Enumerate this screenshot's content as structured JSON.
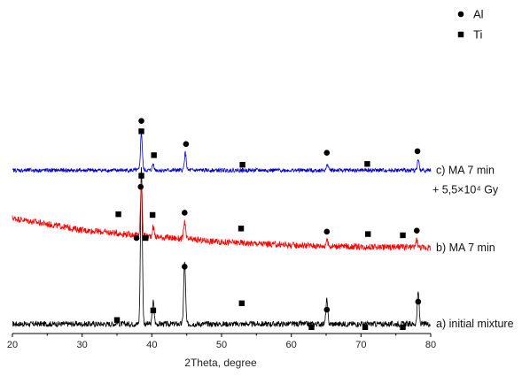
{
  "chart_data": {
    "type": "line",
    "title": "",
    "xlabel": "2Theta, degree",
    "ylabel": "",
    "xlim": [
      20,
      80
    ],
    "x_ticks": [
      20,
      30,
      40,
      50,
      60,
      70,
      80
    ],
    "grid": false,
    "legend": {
      "placement": "top-right",
      "entries": [
        {
          "marker": "circle",
          "label": "Al"
        },
        {
          "marker": "square",
          "label": "Ti"
        }
      ]
    },
    "series": [
      {
        "key": "a",
        "color": "#000000",
        "baseline": 12,
        "noise": 3.5,
        "peaks": [
          [
            35.1,
            3
          ],
          [
            38.5,
            200
          ],
          [
            40.2,
            28
          ],
          [
            44.7,
            78
          ],
          [
            65.1,
            30
          ],
          [
            78.2,
            40
          ]
        ],
        "annotation": "a) initial mixture",
        "circles": [
          [
            37.8,
            108
          ],
          [
            44.7,
            72
          ],
          [
            65.1,
            18
          ],
          [
            78.2,
            28
          ]
        ],
        "squares": [
          [
            35.0,
            5
          ],
          [
            39.1,
            108
          ],
          [
            40.2,
            17
          ],
          [
            52.9,
            26
          ],
          [
            62.9,
            -4
          ],
          [
            70.6,
            -4
          ],
          [
            76.0,
            -4
          ]
        ]
      },
      {
        "key": "b",
        "color": "#ff0000",
        "baseline": [
          [
            20,
            145
          ],
          [
            30,
            130
          ],
          [
            40,
            122
          ],
          [
            50,
            115
          ],
          [
            60,
            111
          ],
          [
            70,
            109
          ],
          [
            80,
            108
          ]
        ],
        "noise": 4,
        "peaks": [
          [
            38.5,
            65
          ],
          [
            40.2,
            12
          ],
          [
            44.7,
            22
          ],
          [
            65.1,
            7
          ],
          [
            78.0,
            10
          ]
        ],
        "annotation": "b) MA 7 min",
        "circles": [
          [
            38.4,
            61
          ],
          [
            44.7,
            33
          ],
          [
            65.1,
            18
          ],
          [
            78.0,
            21
          ]
        ],
        "squares": [
          [
            35.2,
            24
          ],
          [
            38.5,
            75
          ],
          [
            40.1,
            27
          ],
          [
            52.8,
            18
          ],
          [
            71.0,
            16
          ],
          [
            76.0,
            15
          ]
        ]
      },
      {
        "key": "c",
        "color": "#0000cc",
        "baseline": [
          [
            20,
            205
          ],
          [
            80,
            205
          ]
        ],
        "noise": 2.5,
        "peaks": [
          [
            38.5,
            47
          ],
          [
            40.2,
            8
          ],
          [
            44.8,
            22
          ],
          [
            65.2,
            8
          ],
          [
            78.2,
            13
          ]
        ],
        "annotation": "c) MA 7 min",
        "annotation2": "+ 5,5×10⁴ Gy",
        "circles": [
          [
            38.5,
            62
          ],
          [
            44.9,
            33
          ],
          [
            65.1,
            22
          ],
          [
            78.1,
            24
          ]
        ],
        "squares": [
          [
            38.5,
            49
          ],
          [
            40.3,
            19
          ],
          [
            53.0,
            7
          ],
          [
            70.9,
            8
          ]
        ]
      }
    ]
  }
}
